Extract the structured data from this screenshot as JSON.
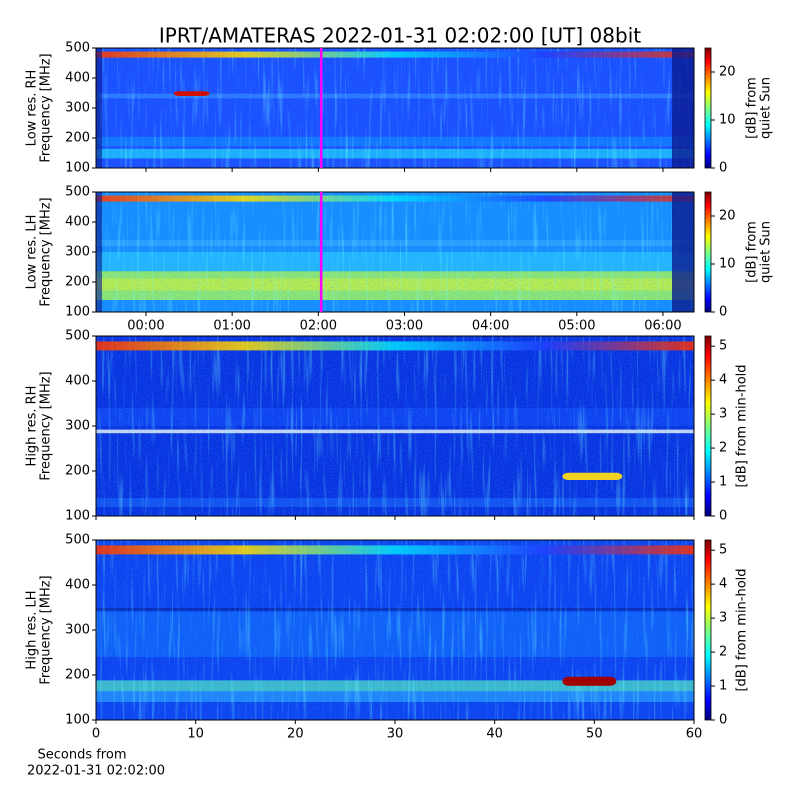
{
  "title": "IPRT/AMATERAS 2022-01-31 02:02:00 [UT]   08bit",
  "chart_data": [
    {
      "type": "heatmap",
      "ylabel": [
        "Low res. RH",
        "Frequency [MHz]"
      ],
      "xlim": [
        -0.58,
        6.36
      ],
      "ylim": [
        100,
        500
      ],
      "yticks": [
        100,
        200,
        300,
        400,
        500
      ],
      "marker": 2.0333,
      "marker_color": "#ff00ff",
      "clim": [
        0,
        25
      ],
      "cticks": [
        0,
        10,
        20
      ],
      "clabel": [
        "[dB] from",
        "quiet Sun"
      ]
    },
    {
      "type": "heatmap",
      "ylabel": [
        "Low res. LH",
        "Frequency [MHz]"
      ],
      "xlim": [
        -0.58,
        6.36
      ],
      "ylim": [
        100,
        500
      ],
      "yticks": [
        100,
        200,
        300,
        400,
        500
      ],
      "xticks": [
        {
          "value": 0,
          "label": "00:00"
        },
        {
          "value": 1,
          "label": "01:00"
        },
        {
          "value": 2,
          "label": "02:00"
        },
        {
          "value": 3,
          "label": "03:00"
        },
        {
          "value": 4,
          "label": "04:00"
        },
        {
          "value": 5,
          "label": "05:00"
        },
        {
          "value": 6,
          "label": "06:00"
        }
      ],
      "marker": 2.0333,
      "marker_color": "#ff00ff",
      "clim": [
        0,
        25
      ],
      "cticks": [
        0,
        10,
        20
      ],
      "clabel": [
        "[dB] from",
        "quiet Sun"
      ]
    },
    {
      "type": "heatmap",
      "ylabel": [
        "High res. RH",
        "Frequency [MHz]"
      ],
      "xlim": [
        0,
        60
      ],
      "ylim": [
        100,
        500
      ],
      "yticks": [
        100,
        200,
        300,
        400,
        500
      ],
      "clim": [
        0,
        5.3
      ],
      "cticks": [
        0,
        1,
        2,
        3,
        4,
        5
      ],
      "clabel": [
        "[dB] from min-hold"
      ]
    },
    {
      "type": "heatmap",
      "ylabel": [
        "High res. LH",
        "Frequency [MHz]"
      ],
      "xlim": [
        0,
        60
      ],
      "ylim": [
        100,
        500
      ],
      "yticks": [
        100,
        200,
        300,
        400,
        500
      ],
      "xticks": [
        0,
        10,
        20,
        30,
        40,
        50,
        60
      ],
      "xlabel": [
        "Seconds from",
        "2022-01-31 02:02:00"
      ],
      "clim": [
        0,
        5.3
      ],
      "cticks": [
        0,
        1,
        2,
        3,
        4,
        5
      ],
      "clabel": [
        "[dB] from min-hold"
      ]
    }
  ]
}
